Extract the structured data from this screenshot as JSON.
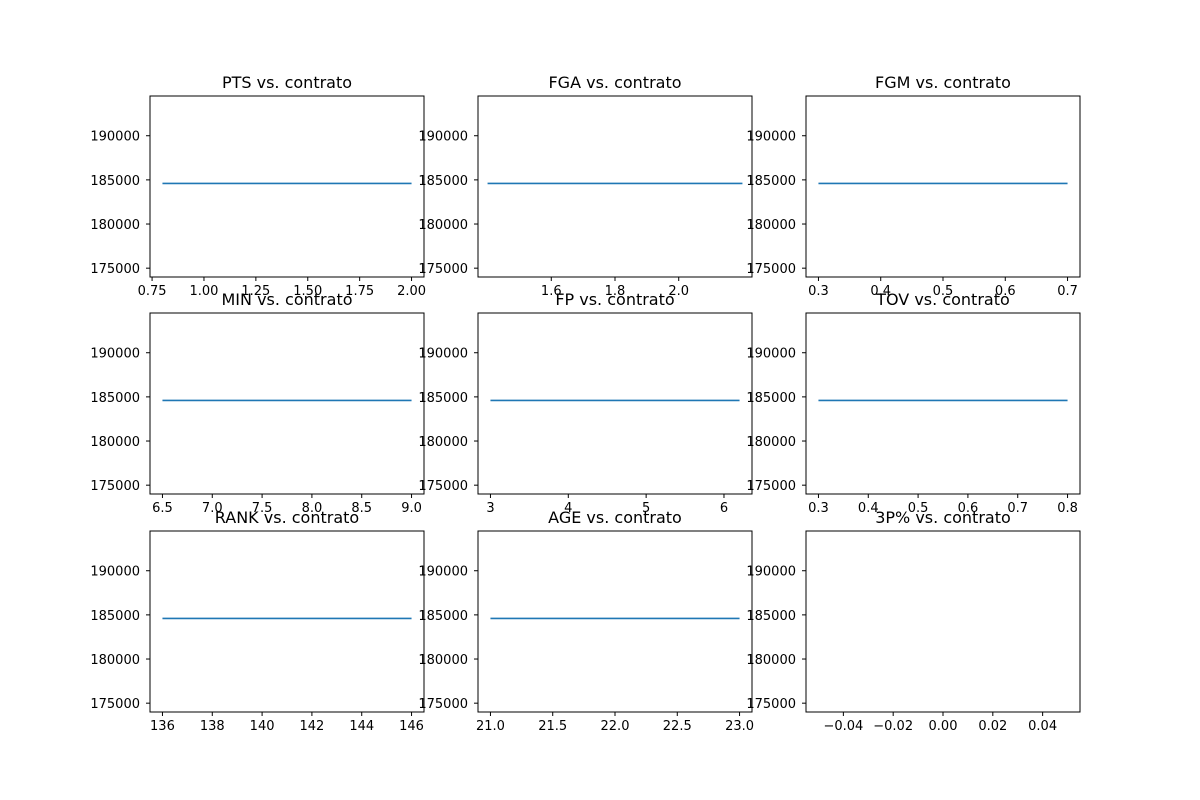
{
  "figure": {
    "background": "#ffffff"
  },
  "style": {
    "line_color": "#1f77b4",
    "axis_color": "#000000"
  },
  "chart_data": [
    {
      "type": "line",
      "title": "PTS vs. contrato",
      "xlim": [
        0.74,
        2.06
      ],
      "ylim": [
        174000,
        194500
      ],
      "xticks": [
        "0.75",
        "1.00",
        "1.25",
        "1.50",
        "1.75",
        "2.00"
      ],
      "yticks": [
        "175000",
        "180000",
        "185000",
        "190000"
      ],
      "series": [
        {
          "x": [
            0.8,
            2.0
          ],
          "y": [
            184600,
            184600
          ]
        }
      ]
    },
    {
      "type": "line",
      "title": "FGA vs. contrato",
      "xlim": [
        1.37,
        2.23
      ],
      "ylim": [
        174000,
        194500
      ],
      "xticks": [
        "1.6",
        "1.8",
        "2.0"
      ],
      "yticks": [
        "175000",
        "180000",
        "185000",
        "190000"
      ],
      "series": [
        {
          "x": [
            1.4,
            2.2
          ],
          "y": [
            184600,
            184600
          ]
        }
      ]
    },
    {
      "type": "line",
      "title": "FGM vs. contrato",
      "xlim": [
        0.28,
        0.72
      ],
      "ylim": [
        174000,
        194500
      ],
      "xticks": [
        "0.3",
        "0.4",
        "0.5",
        "0.6",
        "0.7"
      ],
      "yticks": [
        "175000",
        "180000",
        "185000",
        "190000"
      ],
      "series": [
        {
          "x": [
            0.3,
            0.7
          ],
          "y": [
            184600,
            184600
          ]
        }
      ]
    },
    {
      "type": "line",
      "title": "MIN vs. contrato",
      "xlim": [
        6.375,
        9.125
      ],
      "ylim": [
        174000,
        194500
      ],
      "xticks": [
        "6.5",
        "7.0",
        "7.5",
        "8.0",
        "8.5",
        "9.0"
      ],
      "yticks": [
        "175000",
        "180000",
        "185000",
        "190000"
      ],
      "series": [
        {
          "x": [
            6.5,
            9.0
          ],
          "y": [
            184600,
            184600
          ]
        }
      ]
    },
    {
      "type": "line",
      "title": "FP vs. contrato",
      "xlim": [
        2.84,
        6.36
      ],
      "ylim": [
        174000,
        194500
      ],
      "xticks": [
        "3",
        "4",
        "5",
        "6"
      ],
      "yticks": [
        "175000",
        "180000",
        "185000",
        "190000"
      ],
      "series": [
        {
          "x": [
            3.0,
            6.2
          ],
          "y": [
            184600,
            184600
          ]
        }
      ]
    },
    {
      "type": "line",
      "title": "TOV vs. contrato",
      "xlim": [
        0.275,
        0.825
      ],
      "ylim": [
        174000,
        194500
      ],
      "xticks": [
        "0.3",
        "0.4",
        "0.5",
        "0.6",
        "0.7",
        "0.8"
      ],
      "yticks": [
        "175000",
        "180000",
        "185000",
        "190000"
      ],
      "series": [
        {
          "x": [
            0.3,
            0.8
          ],
          "y": [
            184600,
            184600
          ]
        }
      ]
    },
    {
      "type": "line",
      "title": "RANK vs. contrato",
      "xlim": [
        135.5,
        146.5
      ],
      "ylim": [
        174000,
        194500
      ],
      "xticks": [
        "136",
        "138",
        "140",
        "142",
        "144",
        "146"
      ],
      "yticks": [
        "175000",
        "180000",
        "185000",
        "190000"
      ],
      "series": [
        {
          "x": [
            136,
            146
          ],
          "y": [
            184600,
            184600
          ]
        }
      ]
    },
    {
      "type": "line",
      "title": "AGE vs. contrato",
      "xlim": [
        20.9,
        23.1
      ],
      "ylim": [
        174000,
        194500
      ],
      "xticks": [
        "21.0",
        "21.5",
        "22.0",
        "22.5",
        "23.0"
      ],
      "yticks": [
        "175000",
        "180000",
        "185000",
        "190000"
      ],
      "series": [
        {
          "x": [
            21.0,
            23.0
          ],
          "y": [
            184600,
            184600
          ]
        }
      ]
    },
    {
      "type": "line",
      "title": "3P% vs. contrato",
      "xlim": [
        -0.055,
        0.055
      ],
      "ylim": [
        174000,
        194500
      ],
      "xticks": [
        "−0.04",
        "−0.02",
        "0.00",
        "0.02",
        "0.04"
      ],
      "yticks": [
        "175000",
        "180000",
        "185000",
        "190000"
      ],
      "series": []
    }
  ]
}
